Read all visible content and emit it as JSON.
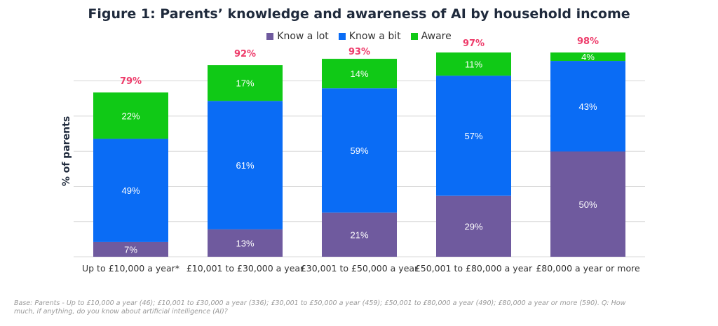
{
  "title": "Figure 1: Parents’ knowledge and awareness of AI by household income",
  "footnote": "Base: Parents - Up to £10,000 a year (46); £10,001 to £30,000 a year (336); £30,001 to £50,000 a year (459); £50,001 to £80,000 a year (490); £80,000 a year or more (590). Q: How much, if anything, do you know about artificial intelligence (AI)?",
  "colors": {
    "know_a_lot": "#6f5a9e",
    "know_a_bit": "#0a6cf5",
    "aware": "#10c916",
    "total_label": "#ee3b6a"
  },
  "chart_data": {
    "type": "bar",
    "stacked": true,
    "title": "Figure 1: Parents’ knowledge and awareness of AI by household income",
    "xlabel": "",
    "ylabel": "% of parents",
    "ylim": [
      0,
      100
    ],
    "grid": true,
    "legend": "top-center",
    "categories": [
      "Up to £10,000 a year*",
      "£10,001 to £30,000 a year",
      "£30,001 to £50,000 a year",
      "£50,001 to £80,000 a year",
      "£80,000 a year or more"
    ],
    "series": [
      {
        "name": "Know a lot",
        "values": [
          7,
          13,
          21,
          29,
          50
        ],
        "labels": [
          "7%",
          "13%",
          "21%",
          "29%",
          "50%"
        ]
      },
      {
        "name": "Know a bit",
        "values": [
          49,
          61,
          59,
          57,
          43
        ],
        "labels": [
          "49%",
          "61%",
          "59%",
          "57%",
          "43%"
        ]
      },
      {
        "name": "Aware",
        "values": [
          22,
          17,
          14,
          11,
          4
        ],
        "labels": [
          "22%",
          "17%",
          "14%",
          "11%",
          "4%"
        ]
      }
    ],
    "totals": [
      79,
      92,
      93,
      97,
      98
    ],
    "total_labels": [
      "79%",
      "92%",
      "93%",
      "97%",
      "98%"
    ]
  }
}
